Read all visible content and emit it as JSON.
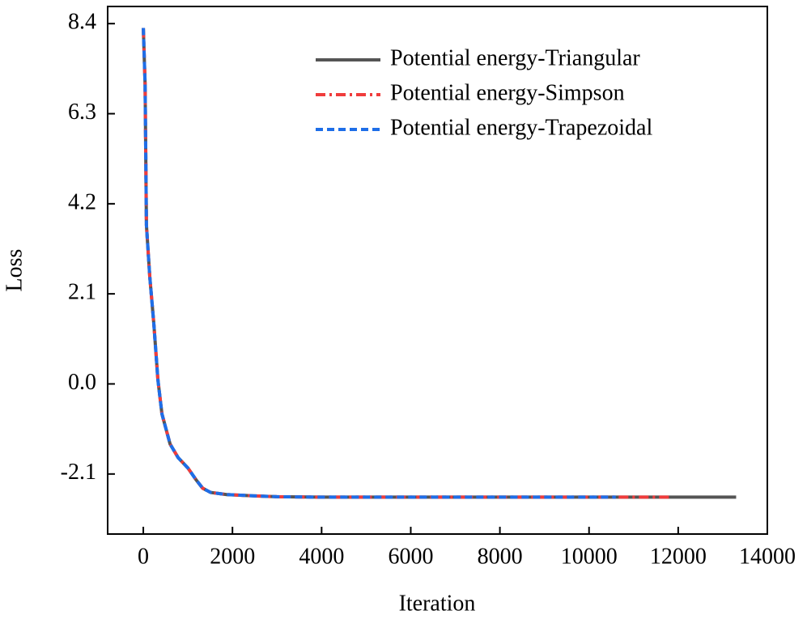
{
  "chart_data": {
    "type": "line",
    "x_label": "Iteration",
    "y_label": "Loss",
    "x": [
      0,
      40,
      70,
      145,
      236,
      327,
      418,
      600,
      782,
      1000,
      1180,
      1330,
      1510,
      1870,
      2500,
      3000,
      4000,
      6000,
      8000,
      10000,
      10600,
      11800,
      13300
    ],
    "series": [
      {
        "name": "Potential energy-Triangular",
        "color": "#555555",
        "dash": "solid",
        "values": [
          8.3,
          7.0,
          3.7,
          2.5,
          1.4,
          0.1,
          -0.7,
          -1.4,
          -1.72,
          -1.96,
          -2.23,
          -2.43,
          -2.53,
          -2.58,
          -2.61,
          -2.63,
          -2.64,
          -2.64,
          -2.64,
          -2.64,
          -2.64,
          -2.64,
          -2.64
        ]
      },
      {
        "name": "Potential energy-Simpson",
        "color": "#f03c3c",
        "dash": "dashdot",
        "values": [
          8.3,
          7.0,
          3.7,
          2.5,
          1.4,
          0.1,
          -0.7,
          -1.4,
          -1.72,
          -1.96,
          -2.23,
          -2.43,
          -2.53,
          -2.58,
          -2.61,
          -2.63,
          -2.64,
          -2.64,
          -2.64,
          -2.64,
          -2.64,
          -2.64,
          null
        ]
      },
      {
        "name": "Potential energy-Trapezoidal",
        "color": "#1e6ee8",
        "dash": "dashed",
        "values": [
          8.3,
          7.0,
          3.7,
          2.5,
          1.4,
          0.1,
          -0.7,
          -1.4,
          -1.72,
          -1.96,
          -2.23,
          -2.43,
          -2.53,
          -2.58,
          -2.61,
          -2.63,
          -2.64,
          -2.64,
          -2.64,
          -2.64,
          -2.64,
          null,
          null
        ]
      }
    ],
    "xlim": [
      -800,
      14000
    ],
    "ylim": [
      -3.5,
      8.8
    ],
    "xticks": [
      0,
      2000,
      4000,
      6000,
      8000,
      10000,
      12000,
      14000
    ],
    "yticks": [
      8.4,
      6.3,
      4.2,
      2.1,
      {
        "value": 0,
        "label": "0.0"
      },
      -2.1
    ],
    "legend": "upper right"
  }
}
